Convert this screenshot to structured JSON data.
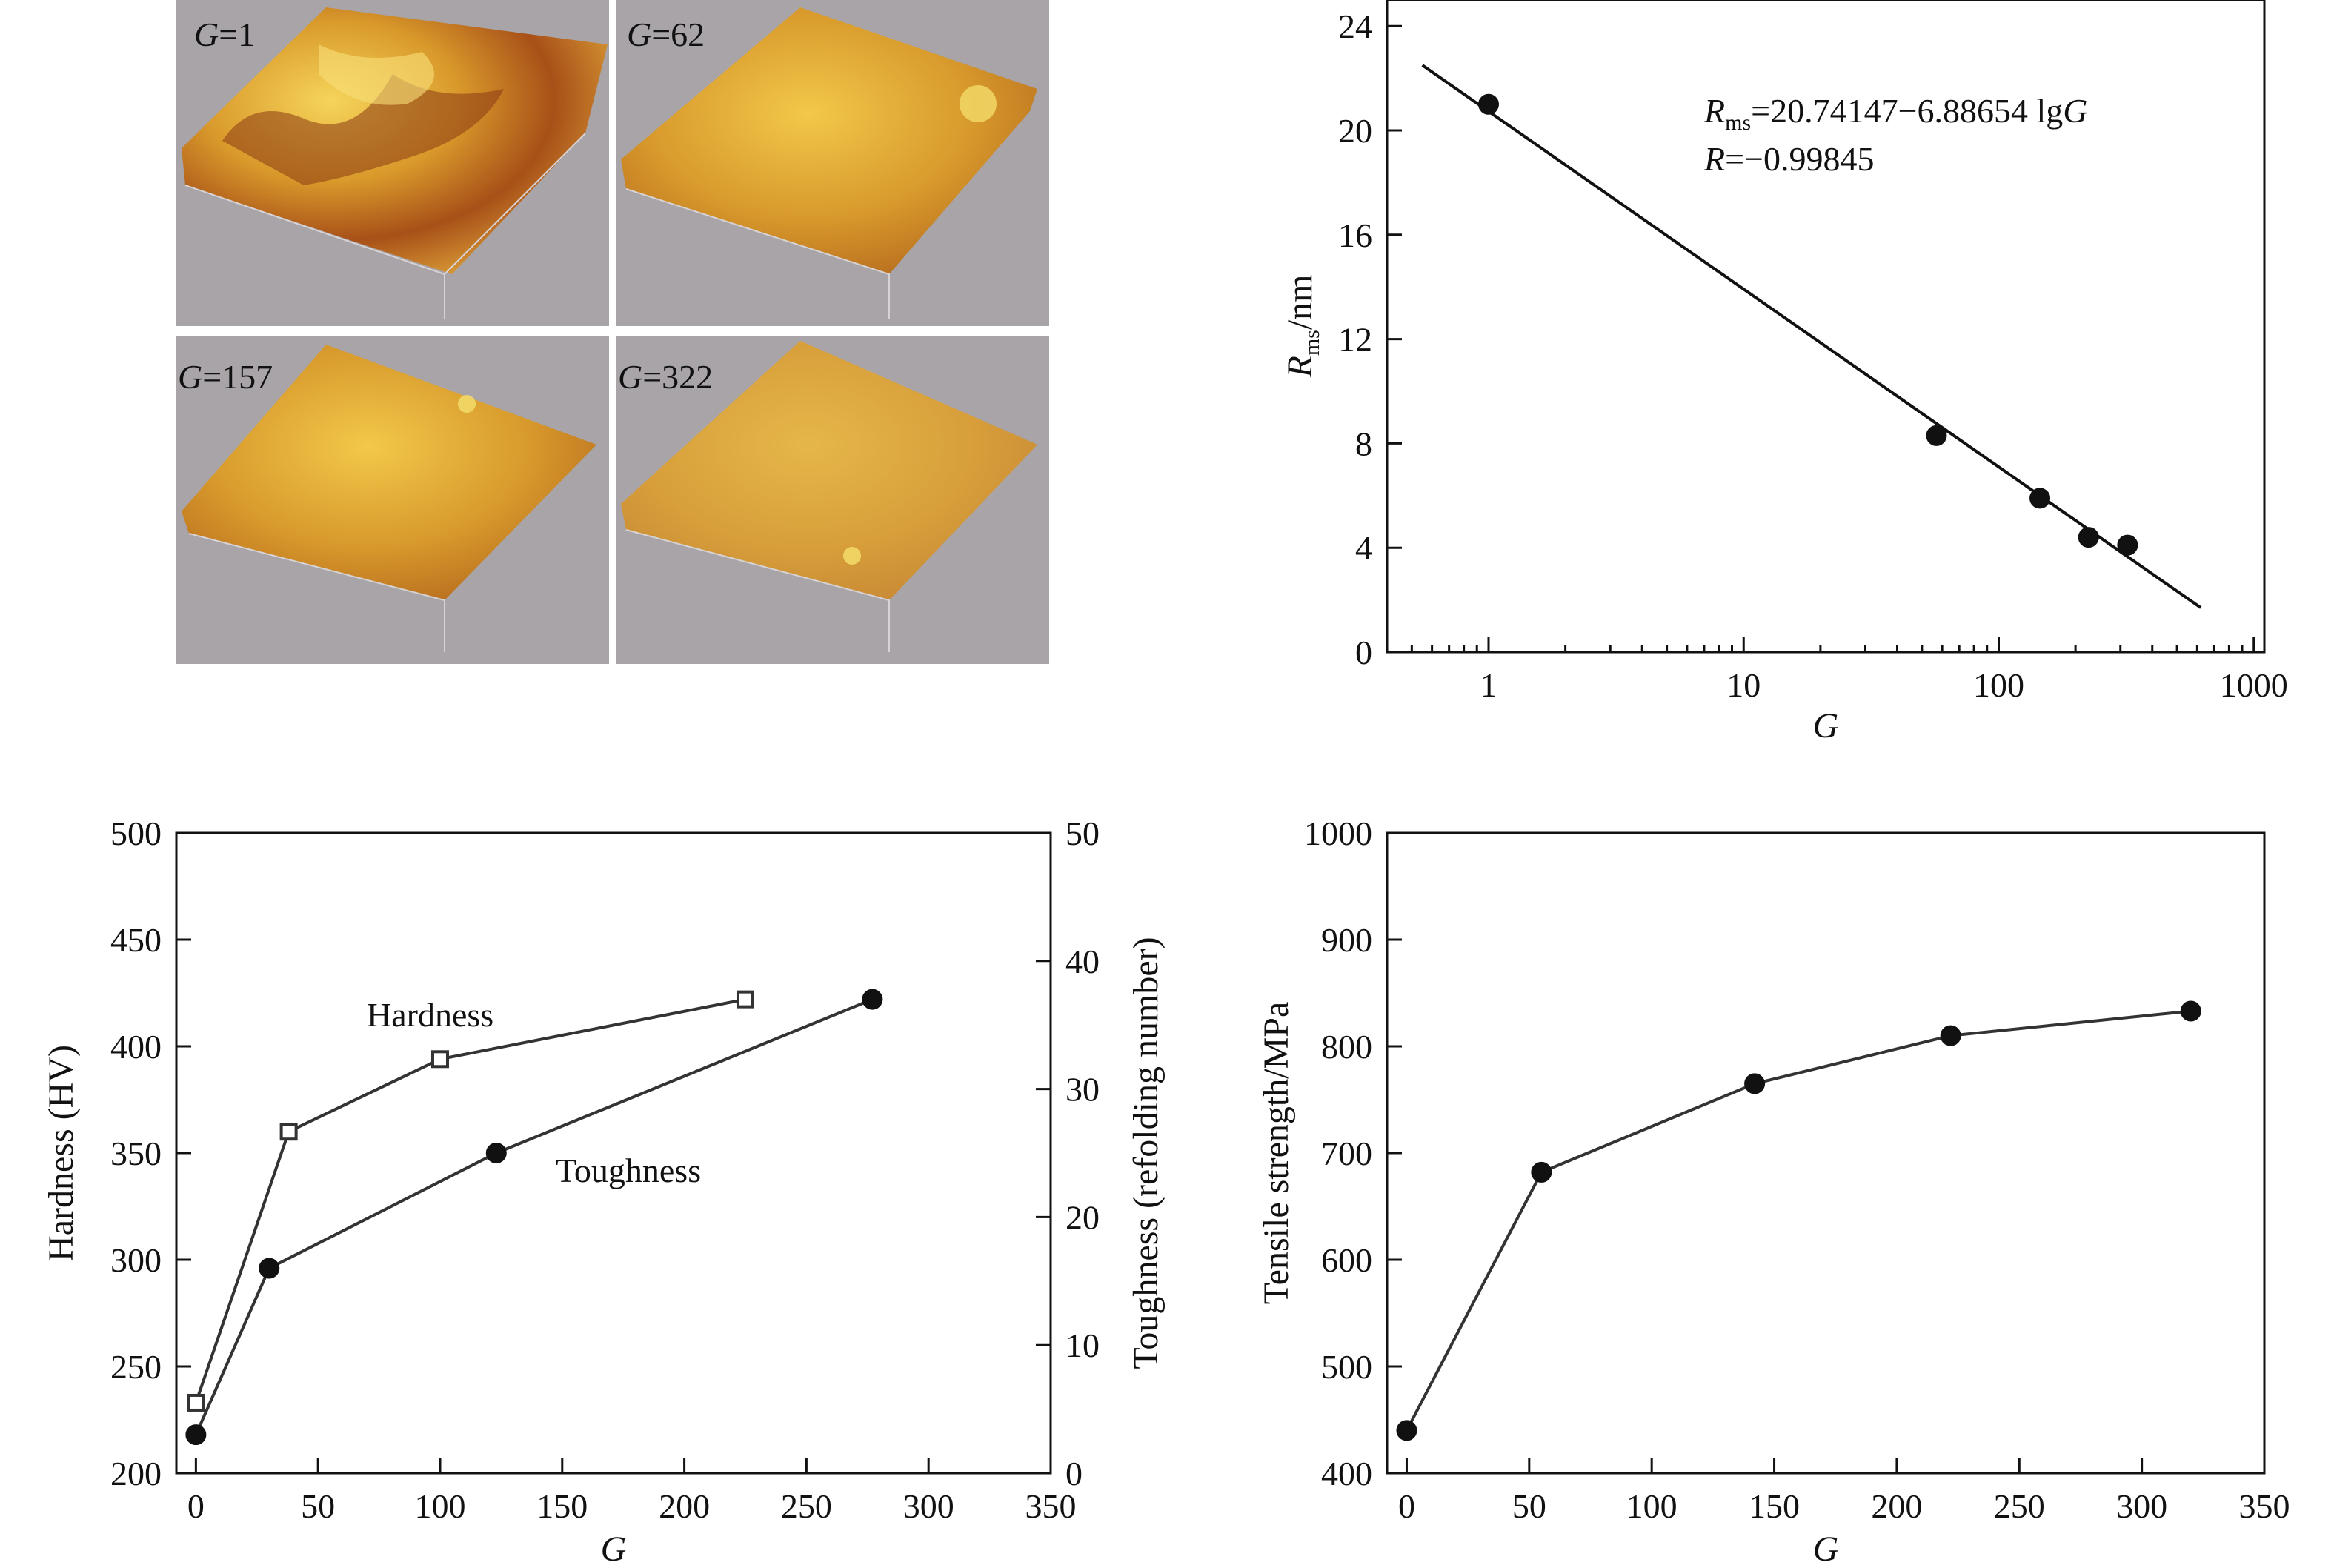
{
  "afm_panels": [
    {
      "label_var": "G",
      "label_rest": "=1"
    },
    {
      "label_var": "G",
      "label_rest": "=62"
    },
    {
      "label_var": "G",
      "label_rest": "=157"
    },
    {
      "label_var": "G",
      "label_rest": "=322"
    }
  ],
  "colors": {
    "afm_background": "#a8a4a7",
    "afm_surface_light": "#e8b93c",
    "afm_surface_dark": "#8a3a14",
    "marker": "#111111",
    "line": "#333333"
  },
  "chart_data": [
    {
      "id": "rms_vs_G",
      "type": "scatter",
      "x_scale": "log",
      "xlabel": "G",
      "ylabel_main": "R",
      "ylabel_sub": "ms",
      "ylabel_rest": "/nm",
      "xlim": [
        0.4,
        1100
      ],
      "ylim": [
        0,
        25
      ],
      "xticks": [
        1,
        10,
        100,
        1000
      ],
      "xtick_labels": [
        "1",
        "10",
        "100",
        "1000"
      ],
      "yticks": [
        0,
        4,
        8,
        12,
        16,
        20,
        24
      ],
      "ytick_labels": [
        "0",
        "4",
        "8",
        "12",
        "16",
        "20",
        "24"
      ],
      "series": [
        {
          "x": [
            1,
            57,
            145,
            225,
            320
          ],
          "y": [
            21.0,
            8.3,
            5.9,
            4.4,
            4.1
          ]
        }
      ],
      "fit": {
        "x": [
          0.55,
          620
        ],
        "y": [
          22.5,
          1.7
        ]
      },
      "equation": {
        "var": "R",
        "sub": "ms",
        "rest": "=20.74147−6.88654 lg",
        "tail_var": "G"
      },
      "r_value": {
        "var": "R",
        "rest": "=−0.99845"
      },
      "grid": false
    },
    {
      "id": "hardness_toughness_vs_G",
      "type": "line",
      "xlabel": "G",
      "ylabel_left": "Hardness (HV)",
      "ylabel_right": "Toughness (refolding number)",
      "xlim": [
        -8,
        350
      ],
      "ylim_left": [
        200,
        500
      ],
      "ylim_right": [
        0,
        50
      ],
      "xticks": [
        0,
        50,
        100,
        150,
        200,
        250,
        300,
        350
      ],
      "xtick_labels": [
        "0",
        "50",
        "100",
        "150",
        "200",
        "250",
        "300",
        "350"
      ],
      "yticks_left": [
        200,
        250,
        300,
        350,
        400,
        450,
        500
      ],
      "ytick_labels_left": [
        "200",
        "250",
        "300",
        "350",
        "400",
        "450",
        "500"
      ],
      "yticks_right": [
        0,
        10,
        20,
        30,
        40,
        50
      ],
      "ytick_labels_right": [
        "0",
        "10",
        "20",
        "30",
        "40",
        "50"
      ],
      "series": [
        {
          "name": "Hardness",
          "axis": "left",
          "marker": "open-square",
          "x": [
            0,
            38,
            100,
            225
          ],
          "y": [
            233,
            360,
            394,
            422
          ]
        },
        {
          "name": "Toughness",
          "axis": "right",
          "marker": "filled-circle",
          "x": [
            0,
            30,
            123,
            277
          ],
          "y": [
            3.0,
            16.0,
            25.0,
            37.0
          ]
        }
      ],
      "grid": false
    },
    {
      "id": "tensile_vs_G",
      "type": "line",
      "xlabel": "G",
      "ylabel": "Tensile strength/MPa",
      "xlim": [
        -8,
        350
      ],
      "ylim": [
        400,
        1000
      ],
      "xticks": [
        0,
        50,
        100,
        150,
        200,
        250,
        300,
        350
      ],
      "xtick_labels": [
        "0",
        "50",
        "100",
        "150",
        "200",
        "250",
        "300",
        "350"
      ],
      "yticks": [
        400,
        500,
        600,
        700,
        800,
        900,
        1000
      ],
      "ytick_labels": [
        "400",
        "500",
        "600",
        "700",
        "800",
        "900",
        "1000"
      ],
      "series": [
        {
          "x": [
            0,
            55,
            142,
            222,
            320
          ],
          "y": [
            440,
            682,
            765,
            810,
            833
          ]
        }
      ],
      "grid": false
    }
  ]
}
